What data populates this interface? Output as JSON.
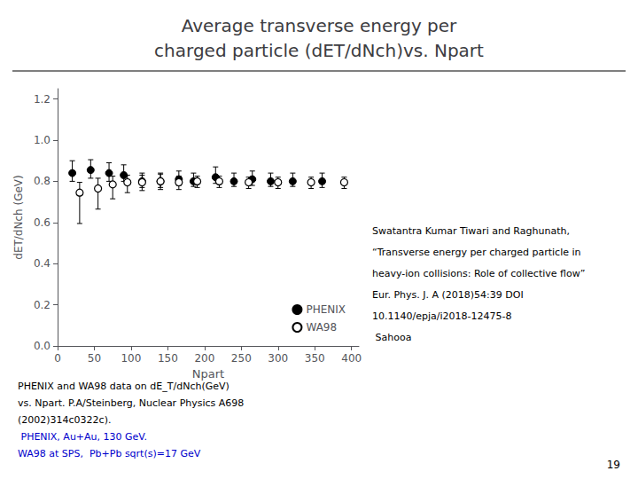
{
  "chart_data": {
    "type": "scatter",
    "title": "Average transverse energy per\ncharged particle (dET/dNch)vs. Npart",
    "x_label": "Npart",
    "y_label": "dET/dNch (GeV)",
    "series": [
      {
        "name": "PHENIX",
        "color": "#000000",
        "marker": "filled_circle",
        "x": [
          20,
          45,
          70,
          90,
          115,
          140,
          165,
          185,
          215,
          240,
          265,
          290,
          320,
          360
        ],
        "values": [
          0.84,
          0.855,
          0.84,
          0.83,
          0.8,
          0.8,
          0.81,
          0.8,
          0.82,
          0.8,
          0.81,
          0.8,
          0.8,
          0.8
        ],
        "yerr_lo": [
          0.04,
          0.04,
          0.04,
          0.03,
          0.03,
          0.03,
          0.03,
          0.025,
          0.03,
          0.025,
          0.03,
          0.025,
          0.025,
          0.03
        ],
        "yerr_hi": [
          0.06,
          0.05,
          0.05,
          0.05,
          0.04,
          0.04,
          0.04,
          0.04,
          0.05,
          0.04,
          0.04,
          0.04,
          0.04,
          0.04
        ]
      },
      {
        "name": "WA98",
        "color": "#000000",
        "marker": "open_circle",
        "x": [
          30,
          55,
          75,
          95,
          115,
          140,
          165,
          190,
          220,
          260,
          300,
          345,
          390
        ],
        "values": [
          0.745,
          0.765,
          0.785,
          0.795,
          0.795,
          0.8,
          0.795,
          0.8,
          0.8,
          0.795,
          0.795,
          0.795,
          0.795
        ],
        "yerr_lo": [
          0.15,
          0.1,
          0.07,
          0.05,
          0.04,
          0.04,
          0.035,
          0.03,
          0.03,
          0.03,
          0.03,
          0.03,
          0.03
        ],
        "yerr_hi": [
          0.05,
          0.05,
          0.04,
          0.035,
          0.035,
          0.035,
          0.03,
          0.025,
          0.025,
          0.025,
          0.025,
          0.025,
          0.025
        ]
      }
    ],
    "xlim": [
      0,
      410
    ],
    "xticks": [
      0,
      50,
      100,
      150,
      200,
      250,
      300,
      350,
      400
    ],
    "ylim": [
      0,
      1.25
    ],
    "yticks": [
      {
        "value": 0,
        "label": "0.0"
      },
      0.2,
      0.4,
      0.6,
      0.8,
      {
        "value": 1.0,
        "label": "1.0"
      },
      1.2
    ],
    "grid": false,
    "legend": "lower right",
    "annotations": {
      "left": [
        {
          "text": "PHENIX and WA98 data on dE_T/dNch(GeV)",
          "color": "#000000"
        },
        {
          "text": "vs. Npart. P.A/Steinberg, Nuclear Physics A698",
          "color": "#000000"
        },
        {
          "text": "(2002)314c0322c).",
          "color": "#000000"
        },
        {
          "text": " PHENIX, Au+Au, 130 GeV.",
          "color": "#0000CC"
        },
        {
          "text": "WA98 at SPS,  Pb+Pb sqrt(s)=17 GeV",
          "color": "#0000CC"
        }
      ],
      "right": [
        "Swatantra Kumar Tiwari and Raghunath,",
        "“Transverse energy per charged particle in",
        "heavy-ion collisions: Role of collective flow”",
        "Eur. Phys. J. A (2018)54:39 DOI",
        "10.1140/epja/i2018-12475-8",
        " Sahooa"
      ],
      "page": "19"
    }
  }
}
